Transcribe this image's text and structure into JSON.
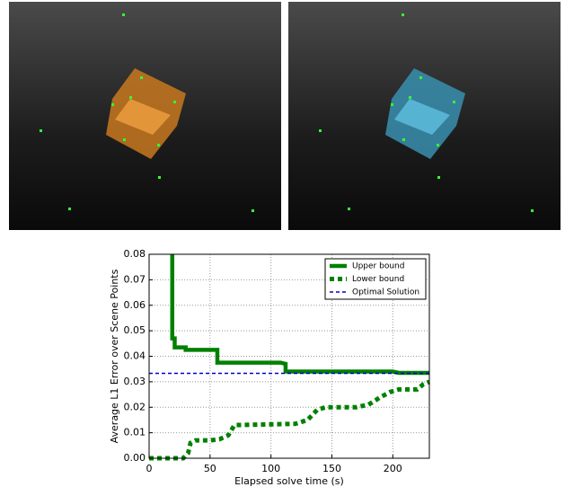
{
  "chart_data": {
    "type": "line",
    "xlabel": "Elapsed solve time (s)",
    "ylabel": "Average L1 Error over Scene Points",
    "xlim": [
      0,
      230
    ],
    "ylim": [
      0,
      0.08
    ],
    "xticks": [
      0,
      50,
      100,
      150,
      200
    ],
    "yticks": [
      {
        "value": 0,
        "label": "0.00"
      },
      {
        "value": 0.01,
        "label": "0.01"
      },
      {
        "value": 0.02,
        "label": "0.02"
      },
      {
        "value": 0.03,
        "label": "0.03"
      },
      {
        "value": 0.04,
        "label": "0.04"
      },
      {
        "value": 0.05,
        "label": "0.05"
      },
      {
        "value": 0.06,
        "label": "0.06"
      },
      {
        "value": 0.07,
        "label": "0.07"
      },
      {
        "value": 0.08,
        "label": "0.08"
      }
    ],
    "grid": true,
    "legend": "upper right",
    "series": [
      {
        "name": "Upper bound",
        "color": "#008000",
        "linestyle": "solid",
        "x": [
          19,
          19,
          21,
          21,
          30,
          30,
          56,
          56,
          108,
          112,
          112,
          200,
          205,
          230
        ],
        "values": [
          0.08,
          0.047,
          0.047,
          0.0435,
          0.0435,
          0.0425,
          0.0425,
          0.0375,
          0.0375,
          0.037,
          0.034,
          0.034,
          0.0335,
          0.0335
        ]
      },
      {
        "name": "Lower bound",
        "color": "#008000",
        "linestyle": "dotted",
        "x": [
          0,
          28,
          32,
          34,
          38,
          50,
          58,
          65,
          70,
          120,
          130,
          138,
          145,
          170,
          180,
          190,
          198,
          205,
          220,
          225,
          230
        ],
        "values": [
          0,
          0,
          0.002,
          0.006,
          0.007,
          0.007,
          0.0075,
          0.009,
          0.013,
          0.0135,
          0.015,
          0.019,
          0.02,
          0.02,
          0.021,
          0.024,
          0.026,
          0.027,
          0.027,
          0.029,
          0.03
        ]
      },
      {
        "name": "Optimal Solution",
        "color": "#0000cc",
        "linestyle": "dashed",
        "x": [
          0,
          230
        ],
        "values": [
          0.0333,
          0.0333
        ]
      }
    ]
  }
}
